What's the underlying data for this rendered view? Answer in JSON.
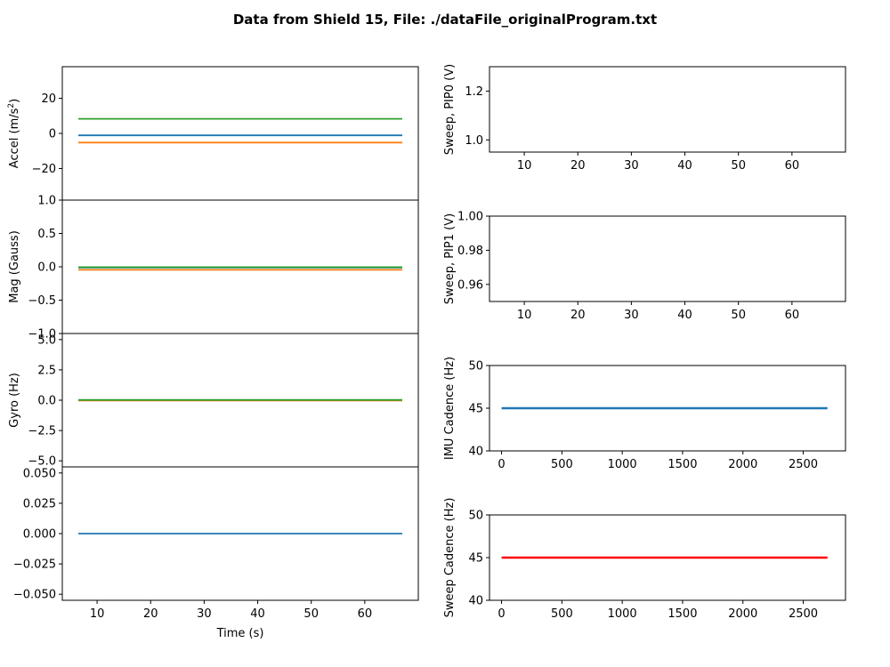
{
  "title": "Data from Shield 15, File: ./dataFile_originalProgram.txt",
  "colors": {
    "c0": "#1f77b4",
    "c1": "#ff7f0e",
    "c2": "#2ca02c",
    "red": "#ff0000",
    "blue": "#0000cc"
  },
  "chart_data": [
    {
      "id": "accel",
      "type": "line",
      "ylabel": "Accel (m/s²)",
      "ylabel_main": "Accel (m/s",
      "ylabel_sup": "2",
      "ylabel_tail": ")",
      "xlim": [
        3.5,
        70
      ],
      "ylim": [
        -38,
        38
      ],
      "yticks": [
        -20,
        0,
        20
      ],
      "ytick_labels": [
        "−20",
        "0",
        "20"
      ],
      "series": [
        {
          "color": "c0",
          "x": [
            6.5,
            67
          ],
          "y": [
            -1.1,
            -1.1
          ]
        },
        {
          "color": "c1",
          "x": [
            6.5,
            67
          ],
          "y": [
            -5.2,
            -5.2
          ]
        },
        {
          "color": "c2",
          "x": [
            6.5,
            67
          ],
          "y": [
            8.3,
            8.3
          ]
        }
      ]
    },
    {
      "id": "mag",
      "type": "line",
      "ylabel": "Mag (Gauss)",
      "xlim": [
        3.5,
        70
      ],
      "ylim": [
        -1.0,
        1.0
      ],
      "yticks": [
        -1.0,
        -0.5,
        0.0,
        0.5,
        1.0
      ],
      "ytick_labels": [
        "−1.0",
        "−0.5",
        "0.0",
        "0.5",
        "1.0"
      ],
      "series": [
        {
          "color": "c0",
          "x": [
            6.5,
            67
          ],
          "y": [
            -0.01,
            -0.01
          ]
        },
        {
          "color": "c1",
          "x": [
            6.5,
            67
          ],
          "y": [
            -0.045,
            -0.045
          ]
        },
        {
          "color": "c2",
          "x": [
            6.5,
            67
          ],
          "y": [
            -0.005,
            -0.005
          ]
        }
      ]
    },
    {
      "id": "gyro",
      "type": "line",
      "ylabel": "Gyro (Hz)",
      "xlim": [
        3.5,
        70
      ],
      "ylim": [
        -5.5,
        5.5
      ],
      "yticks": [
        -5.0,
        -2.5,
        0.0,
        2.5,
        5.0
      ],
      "ytick_labels": [
        "−5.0",
        "−2.5",
        "0.0",
        "2.5",
        "5.0"
      ],
      "series": [
        {
          "color": "c0",
          "x": [
            6.5,
            67
          ],
          "y": [
            0.0,
            0.0
          ]
        },
        {
          "color": "c1",
          "x": [
            6.5,
            67
          ],
          "y": [
            -0.02,
            -0.02
          ]
        },
        {
          "color": "c2",
          "x": [
            6.5,
            67
          ],
          "y": [
            0.02,
            0.02
          ]
        }
      ]
    },
    {
      "id": "fourth",
      "type": "line",
      "ylabel": "",
      "xlabel": "Time (s)",
      "xlim": [
        3.5,
        70
      ],
      "ylim": [
        -0.055,
        0.055
      ],
      "xticks": [
        10,
        20,
        30,
        40,
        50,
        60
      ],
      "xtick_labels": [
        "10",
        "20",
        "30",
        "40",
        "50",
        "60"
      ],
      "yticks": [
        -0.05,
        -0.025,
        0.0,
        0.025,
        0.05
      ],
      "ytick_labels": [
        "−0.050",
        "−0.025",
        "0.000",
        "0.025",
        "0.050"
      ],
      "series": [
        {
          "color": "c0",
          "x": [
            6.5,
            67
          ],
          "y": [
            0.0,
            0.0
          ]
        }
      ]
    },
    {
      "id": "pip0",
      "type": "line",
      "ylabel": "Sweep, PIP0 (V)",
      "xlim": [
        3.5,
        70
      ],
      "ylim": [
        0.95,
        1.3
      ],
      "xticks": [
        10,
        20,
        30,
        40,
        50,
        60
      ],
      "xtick_labels": [
        "10",
        "20",
        "30",
        "40",
        "50",
        "60"
      ],
      "yticks": [
        1.0,
        1.2
      ],
      "ytick_labels": [
        "1.0",
        "1.2"
      ],
      "series": []
    },
    {
      "id": "pip1",
      "type": "line",
      "ylabel": "Sweep, PIP1 (V)",
      "xlim": [
        3.5,
        70
      ],
      "ylim": [
        0.95,
        1.0
      ],
      "xticks": [
        10,
        20,
        30,
        40,
        50,
        60
      ],
      "xtick_labels": [
        "10",
        "20",
        "30",
        "40",
        "50",
        "60"
      ],
      "yticks": [
        0.96,
        0.98,
        1.0
      ],
      "ytick_labels": [
        "0.96",
        "0.98",
        "1.00"
      ],
      "series": []
    },
    {
      "id": "imu",
      "type": "line",
      "ylabel": "IMU Cadence (Hz)",
      "ylabel_color": "blue",
      "xlim": [
        -100,
        2850
      ],
      "ylim": [
        40,
        50
      ],
      "xticks": [
        0,
        500,
        1000,
        1500,
        2000,
        2500
      ],
      "xtick_labels": [
        "0",
        "500",
        "1000",
        "1500",
        "2000",
        "2500"
      ],
      "yticks": [
        40,
        45,
        50
      ],
      "ytick_labels": [
        "40",
        "45",
        "50"
      ],
      "series": [
        {
          "color": "c0",
          "x": [
            0,
            2700
          ],
          "y": [
            45,
            45
          ]
        }
      ]
    },
    {
      "id": "sweep",
      "type": "line",
      "ylabel": "Sweep Cadence (Hz)",
      "ylabel_color": "red",
      "xlim": [
        -100,
        2850
      ],
      "ylim": [
        40,
        50
      ],
      "xticks": [
        0,
        500,
        1000,
        1500,
        2000,
        2500
      ],
      "xtick_labels": [
        "0",
        "500",
        "1000",
        "1500",
        "2000",
        "2500"
      ],
      "yticks": [
        40,
        45,
        50
      ],
      "ytick_labels": [
        "40",
        "45",
        "50"
      ],
      "series": [
        {
          "color": "red",
          "x": [
            0,
            2700
          ],
          "y": [
            45,
            45
          ]
        }
      ]
    }
  ]
}
